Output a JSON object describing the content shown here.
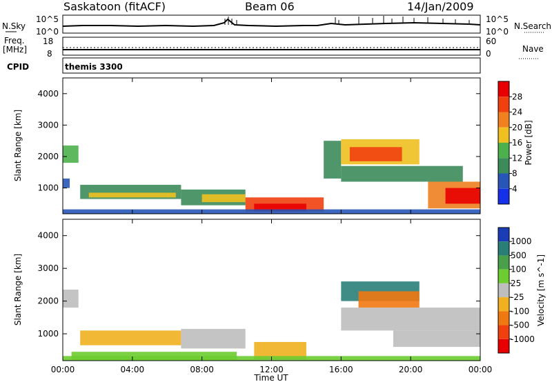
{
  "header": {
    "station": "Saskatoon (fitACF)",
    "beam": "Beam 06",
    "date": "14/Jan/2009"
  },
  "aux_panels": {
    "nsky_label": "N.Sky",
    "nsky_ticks": [
      "10^5",
      "10^0"
    ],
    "nsearch_label": "N.Search",
    "nsearch_ticks": [
      "10^5",
      "10^0"
    ],
    "freq_label_line1": "Freq.",
    "freq_label_line2": "[MHz]",
    "freq_ticks": [
      "18",
      "8"
    ],
    "nave_label": "Nave",
    "nave_ticks": [
      "60",
      "0"
    ],
    "cpid_label": "CPID",
    "cpid_value": "themis 3300"
  },
  "colors": {
    "power_scale": [
      "#1430e8",
      "#2856b8",
      "#3c8c5a",
      "#4cb04c",
      "#f0c020",
      "#f08020",
      "#f04010",
      "#e80000"
    ],
    "velocity_scale": [
      "#1a3cb4",
      "#2a7e78",
      "#4aa04a",
      "#6ccc30",
      "#bebebe",
      "#f0b020",
      "#f07810",
      "#f04010",
      "#e80000"
    ]
  },
  "chart_data": [
    {
      "type": "heatmap",
      "name": "power-panel",
      "xlabel": "",
      "ylabel": "Slant Range [km]",
      "x_ticks": [
        "00:00",
        "04:00",
        "08:00",
        "12:00",
        "16:00",
        "20:00",
        "00:00"
      ],
      "xlim_hours": [
        0,
        24
      ],
      "y_ticks": [
        1000,
        2000,
        3000,
        4000
      ],
      "ylim_km": [
        180,
        4500
      ],
      "colorbar": {
        "label": "Power [dB]",
        "ticks": [
          "4",
          "8",
          "12",
          "16",
          "20",
          "24",
          "28"
        ],
        "range": [
          0,
          30
        ],
        "levels": 8
      },
      "regions": [
        {
          "t0": 0.0,
          "t1": 0.9,
          "r0": 1800,
          "r1": 2350,
          "level": 3
        },
        {
          "t0": 0.0,
          "t1": 0.4,
          "r0": 1000,
          "r1": 1300,
          "level": 1
        },
        {
          "t0": 1.0,
          "t1": 6.8,
          "r0": 650,
          "r1": 1100,
          "level": 2
        },
        {
          "t0": 1.5,
          "t1": 6.5,
          "r0": 700,
          "r1": 850,
          "level": 4
        },
        {
          "t0": 6.8,
          "t1": 10.5,
          "r0": 450,
          "r1": 950,
          "level": 2
        },
        {
          "t0": 8.0,
          "t1": 10.5,
          "r0": 550,
          "r1": 800,
          "level": 4
        },
        {
          "t0": 10.5,
          "t1": 15.0,
          "r0": 250,
          "r1": 700,
          "level": 6
        },
        {
          "t0": 11.0,
          "t1": 14.0,
          "r0": 250,
          "r1": 500,
          "level": 7
        },
        {
          "t0": 15.0,
          "t1": 16.0,
          "r0": 1300,
          "r1": 2500,
          "level": 2
        },
        {
          "t0": 16.0,
          "t1": 20.5,
          "r0": 1750,
          "r1": 2550,
          "level": 4
        },
        {
          "t0": 16.5,
          "t1": 19.5,
          "r0": 1850,
          "r1": 2300,
          "level": 6
        },
        {
          "t0": 16.0,
          "t1": 23.0,
          "r0": 1200,
          "r1": 1700,
          "level": 2
        },
        {
          "t0": 21.0,
          "t1": 24.0,
          "r0": 350,
          "r1": 1200,
          "level": 5
        },
        {
          "t0": 22.0,
          "t1": 24.0,
          "r0": 500,
          "r1": 1000,
          "level": 7
        },
        {
          "t0": 0.0,
          "t1": 24.0,
          "r0": 190,
          "r1": 320,
          "level": 1
        }
      ]
    },
    {
      "type": "heatmap",
      "name": "velocity-panel",
      "xlabel": "Time UT",
      "ylabel": "Slant Range [km]",
      "x_ticks": [
        "00:00",
        "04:00",
        "08:00",
        "12:00",
        "16:00",
        "20:00",
        "00:00"
      ],
      "xlim_hours": [
        0,
        24
      ],
      "y_ticks": [
        1000,
        2000,
        3000,
        4000
      ],
      "ylim_km": [
        180,
        4500
      ],
      "colorbar": {
        "label": "Velocity [m s^-1]",
        "ticks": [
          "1000",
          "500",
          "100",
          "25",
          "-25",
          "-100",
          "-500",
          "-1000"
        ],
        "levels": 9
      },
      "regions": [
        {
          "t0": 0.0,
          "t1": 0.9,
          "r0": 1800,
          "r1": 2350,
          "level": 4
        },
        {
          "t0": 1.0,
          "t1": 6.8,
          "r0": 650,
          "r1": 1100,
          "level": 5
        },
        {
          "t0": 6.8,
          "t1": 10.5,
          "r0": 550,
          "r1": 1150,
          "level": 4
        },
        {
          "t0": 0.5,
          "t1": 10.0,
          "r0": 200,
          "r1": 450,
          "level": 3
        },
        {
          "t0": 11.0,
          "t1": 14.0,
          "r0": 220,
          "r1": 750,
          "level": 5
        },
        {
          "t0": 16.0,
          "t1": 20.5,
          "r0": 2000,
          "r1": 2600,
          "level": 1
        },
        {
          "t0": 17.0,
          "t1": 20.5,
          "r0": 1800,
          "r1": 2300,
          "level": 6
        },
        {
          "t0": 16.0,
          "t1": 24.0,
          "r0": 1100,
          "r1": 1800,
          "level": 4
        },
        {
          "t0": 19.0,
          "t1": 24.0,
          "r0": 600,
          "r1": 1100,
          "level": 4
        },
        {
          "t0": 0.0,
          "t1": 24.0,
          "r0": 190,
          "r1": 320,
          "level": 3
        }
      ]
    }
  ]
}
